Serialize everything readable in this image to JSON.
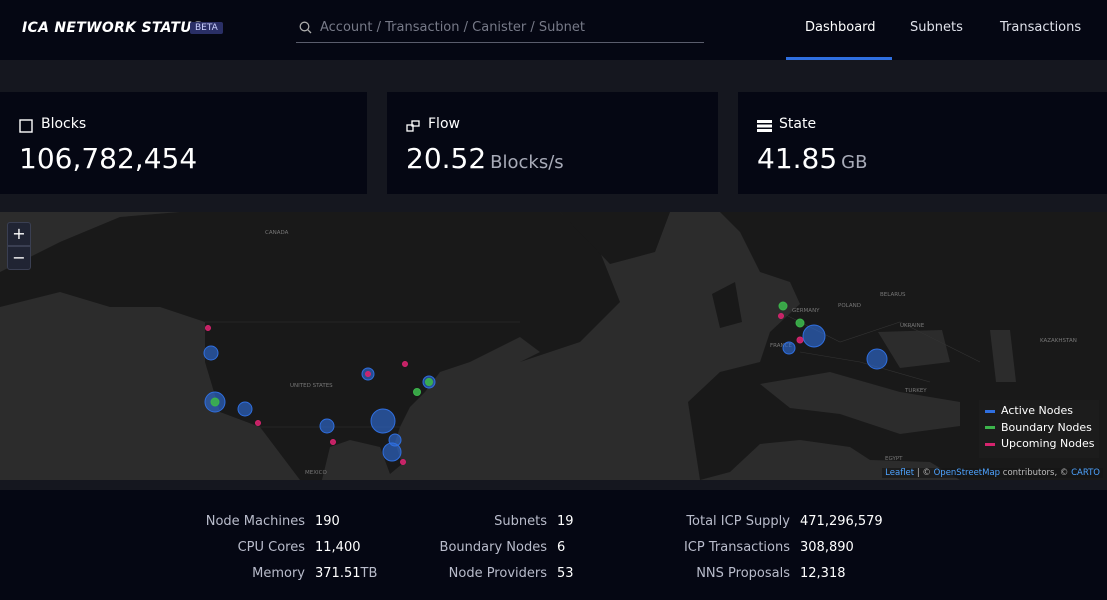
{
  "header": {
    "brand": "ICA NETWORK STATUS",
    "badge": "BETA",
    "search_placeholder": "Account / Transaction / Canister / Subnet",
    "nav": [
      "Dashboard",
      "Subnets",
      "Transactions"
    ],
    "active_nav": "Dashboard"
  },
  "cards": [
    {
      "title": "Blocks",
      "value": "106,782,454"
    },
    {
      "title": "Flow",
      "value": "20.52",
      "unit": "Blocks/s"
    },
    {
      "title": "State",
      "value": "41.85",
      "unit": "GB"
    }
  ],
  "map": {
    "zoom_in": "+",
    "zoom_out": "−",
    "legend": [
      {
        "label": "Active Nodes",
        "color": "#2f6fe0"
      },
      {
        "label": "Boundary Nodes",
        "color": "#3cb44b"
      },
      {
        "label": "Upcoming Nodes",
        "color": "#d6246e"
      }
    ],
    "attribution": [
      "Leaflet",
      " | © ",
      "OpenStreetMap",
      " contributors, © ",
      "CARTO"
    ],
    "places": [
      "CANADA",
      "UNITED STATES",
      "MEXICO",
      "GERMANY",
      "POLAND",
      "FRANCE",
      "BELARUS",
      "UKRAINE",
      "KAZAKHSTAN",
      "TURKEY",
      "EGYPT"
    ]
  },
  "stats": [
    [
      {
        "label": "Node Machines",
        "value": "190"
      },
      {
        "label": "CPU Cores",
        "value": "11,400"
      },
      {
        "label": "Memory",
        "value": "371.51",
        "unit": "TB"
      }
    ],
    [
      {
        "label": "Subnets",
        "value": "19"
      },
      {
        "label": "Boundary Nodes",
        "value": "6"
      },
      {
        "label": "Node Providers",
        "value": "53"
      }
    ],
    [
      {
        "label": "Total ICP Supply",
        "value": "471,296,579"
      },
      {
        "label": "ICP Transactions",
        "value": "308,890"
      },
      {
        "label": "NNS Proposals",
        "value": "12,318"
      }
    ]
  ]
}
